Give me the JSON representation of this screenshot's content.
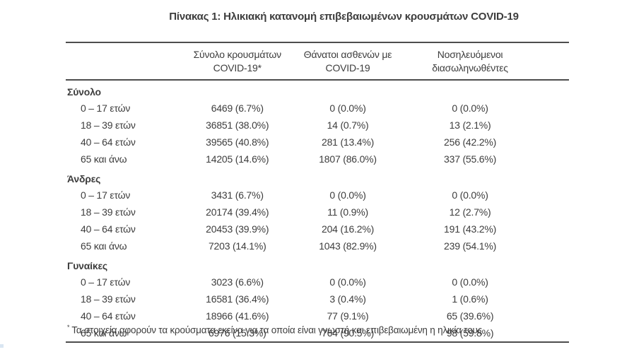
{
  "page": {
    "title": "Πίνακας 1: Ηλικιακή κατανομή επιβεβαιωμένων κρουσμάτων COVID-19"
  },
  "table": {
    "columns": {
      "cases_line1": "Σύνολο κρουσμάτων",
      "cases_line2": "COVID-19*",
      "deaths_line1": "Θάνατοι ασθενών με",
      "deaths_line2": "COVID-19",
      "intubated_line1": "Νοσηλευόμενοι",
      "intubated_line2": "διασωληνωθέντες"
    },
    "sections": [
      {
        "title": "Σύνολο",
        "rows": [
          {
            "label": "0 – 17 ετών",
            "cases": "6469 (6.7%)",
            "deaths": "0 (0.0%)",
            "intubated": "0 (0.0%)"
          },
          {
            "label": "18 – 39 ετών",
            "cases": "36851 (38.0%)",
            "deaths": "14 (0.7%)",
            "intubated": "13 (2.1%)"
          },
          {
            "label": "40 – 64 ετών",
            "cases": "39565 (40.8%)",
            "deaths": "281 (13.4%)",
            "intubated": "256 (42.2%)"
          },
          {
            "label": "65 και άνω",
            "cases": "14205 (14.6%)",
            "deaths": "1807 (86.0%)",
            "intubated": "337 (55.6%)"
          }
        ]
      },
      {
        "title": "Άνδρες",
        "rows": [
          {
            "label": "0 – 17 ετών",
            "cases": "3431 (6.7%)",
            "deaths": "0 (0.0%)",
            "intubated": "0 (0.0%)"
          },
          {
            "label": "18 – 39 ετών",
            "cases": "20174 (39.4%)",
            "deaths": "11 (0.9%)",
            "intubated": "12 (2.7%)"
          },
          {
            "label": "40 – 64 ετών",
            "cases": "20453 (39.9%)",
            "deaths": "204 (16.2%)",
            "intubated": "191 (43.2%)"
          },
          {
            "label": "65 και άνω",
            "cases": "7203 (14.1%)",
            "deaths": "1043 (82.9%)",
            "intubated": "239 (54.1%)"
          }
        ]
      },
      {
        "title": "Γυναίκες",
        "rows": [
          {
            "label": "0 – 17 ετών",
            "cases": "3023 (6.6%)",
            "deaths": "0 (0.0%)",
            "intubated": "0 (0.0%)"
          },
          {
            "label": "18 – 39 ετών",
            "cases": "16581 (36.4%)",
            "deaths": "3 (0.4%)",
            "intubated": "1 (0.6%)"
          },
          {
            "label": "40 – 64 ετών",
            "cases": "18966 (41.6%)",
            "deaths": "77 (9.1%)",
            "intubated": "65 (39.6%)"
          },
          {
            "label": "65 και άνω",
            "cases": "6976 (15.3%)",
            "deaths": "764 (90.5%)",
            "intubated": "98 (59.8%)"
          }
        ]
      }
    ],
    "footnote_marker": "*",
    "footnote": "Τα στοιχεία αφορούν τα κρούσματα εκείνα για τα οποία είναι γνωστή και επιβεβαιωμένη η ηλικία τους"
  },
  "colors": {
    "text": "#3d3d3d",
    "rule": "#4d4d4d",
    "background": "#ffffff"
  }
}
